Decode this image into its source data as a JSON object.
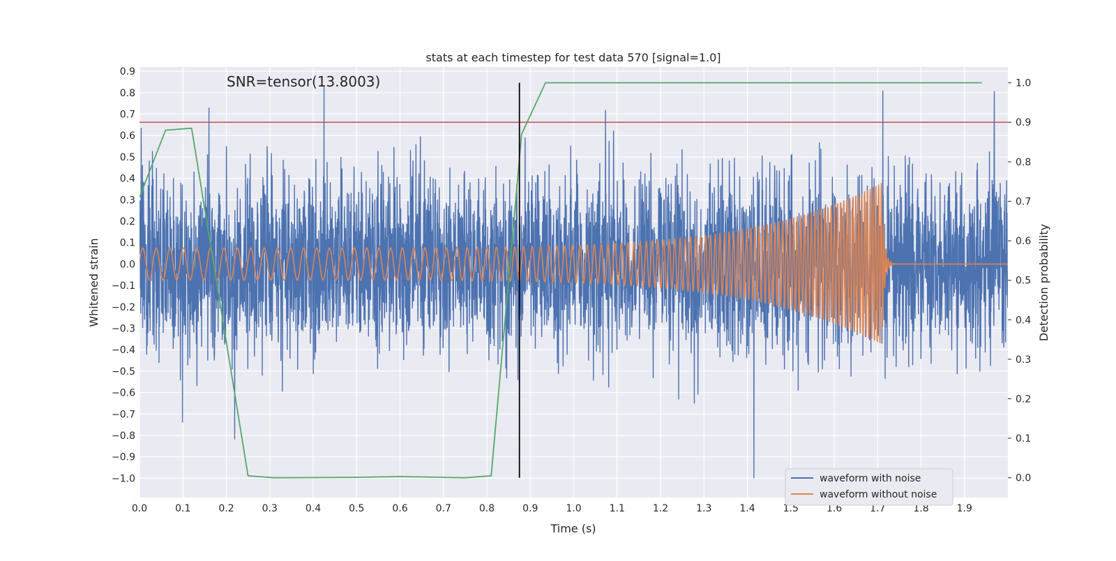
{
  "chart_data": {
    "type": "line",
    "title": "stats at each timestep for test data 570 [signal=1.0]",
    "xlabel": "Time (s)",
    "ylabel": "Whitened strain",
    "y2label": "Detection probability",
    "annotation": "SNR=tensor(13.8003)",
    "xlim": [
      0.0,
      2.0
    ],
    "ylim": [
      -1.09,
      0.92
    ],
    "y2lim": [
      -0.05,
      1.04
    ],
    "x_ticks": [
      0.0,
      0.1,
      0.2,
      0.3,
      0.4,
      0.5,
      0.6,
      0.7,
      0.8,
      0.9,
      1.0,
      1.1,
      1.2,
      1.3,
      1.4,
      1.5,
      1.6,
      1.7,
      1.8,
      1.9
    ],
    "x_tick_labels": [
      "0.0",
      "0.1",
      "0.2",
      "0.3",
      "0.4",
      "0.5",
      "0.6",
      "0.7",
      "0.8",
      "0.9",
      "1.0",
      "1.1",
      "1.2",
      "1.3",
      "1.4",
      "1.5",
      "1.6",
      "1.7",
      "1.8",
      "1.9"
    ],
    "y_ticks": [
      0.9,
      0.8,
      0.7,
      0.6,
      0.5,
      0.4,
      0.3,
      0.2,
      0.1,
      0.0,
      -0.1,
      -0.2,
      -0.3,
      -0.4,
      -0.5,
      -0.6,
      -0.7,
      -0.8,
      -0.9,
      -1.0
    ],
    "y_tick_labels": [
      "0.9",
      "0.8",
      "0.7",
      "0.6",
      "0.5",
      "0.4",
      "0.3",
      "0.2",
      "0.1",
      "0.0",
      "−0.1",
      "−0.2",
      "−0.3",
      "−0.4",
      "−0.5",
      "−0.6",
      "−0.7",
      "−0.8",
      "−0.9",
      "−1.0"
    ],
    "y2_ticks": [
      1.0,
      0.9,
      0.8,
      0.7,
      0.6,
      0.5,
      0.4,
      0.3,
      0.2,
      0.1,
      0.0
    ],
    "y2_tick_labels": [
      "1.0",
      "0.9",
      "0.8",
      "0.7",
      "0.6",
      "0.5",
      "0.4",
      "0.3",
      "0.2",
      "0.1",
      "0.0"
    ],
    "grid": true,
    "legend_position": "lower-right",
    "series": [
      {
        "name": "waveform with noise",
        "axis": "left",
        "color": "#4c72b0",
        "kind": "noisy strain, amplitude approx ±0.5 with spikes to 0.83 and −1.0",
        "samples": 4096,
        "seed": 570
      },
      {
        "name": "waveform without noise",
        "axis": "left",
        "color": "#dd8452",
        "kind": "chirp",
        "f_start_hz": 32,
        "f_end_hz": 160,
        "t_merger": 1.71,
        "amplitude_start": 0.075,
        "amplitude_peak": 0.38,
        "trough_peak": -0.36
      },
      {
        "axis": "right",
        "color": "#55a868",
        "x": [
          0.0,
          0.06,
          0.12,
          0.25,
          0.31,
          0.5,
          0.6,
          0.75,
          0.81,
          0.88,
          0.935,
          1.94
        ],
        "y": [
          0.71,
          0.88,
          0.885,
          0.005,
          0.0,
          0.001,
          0.003,
          0.0,
          0.005,
          0.87,
          1.0,
          1.0
        ]
      }
    ],
    "threshold_line": {
      "axis": "right",
      "y": 0.9,
      "color": "#c44e52"
    },
    "event_line": {
      "x": 0.875,
      "color": "#000000"
    }
  }
}
